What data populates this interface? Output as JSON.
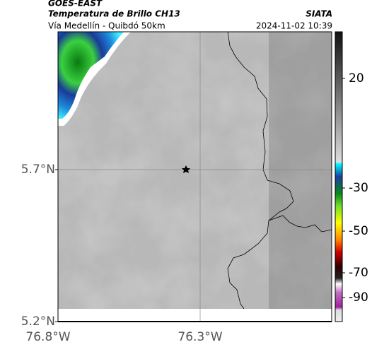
{
  "header": {
    "product": "GOES-EAST",
    "title": "Temperatura de Brillo CH13",
    "source": "SIATA",
    "subtitle": "Vía Medellín - Quibdó 50km",
    "datetime": "2024-11-02 10:39"
  },
  "map": {
    "lat_labels": [
      "5.7°N",
      "5.2°N"
    ],
    "lon_labels": [
      "76.8°W",
      "76.3°W"
    ]
  },
  "colorbar": {
    "tick_labels": [
      "20",
      "-30",
      "-50",
      "-70",
      "-90"
    ]
  }
}
